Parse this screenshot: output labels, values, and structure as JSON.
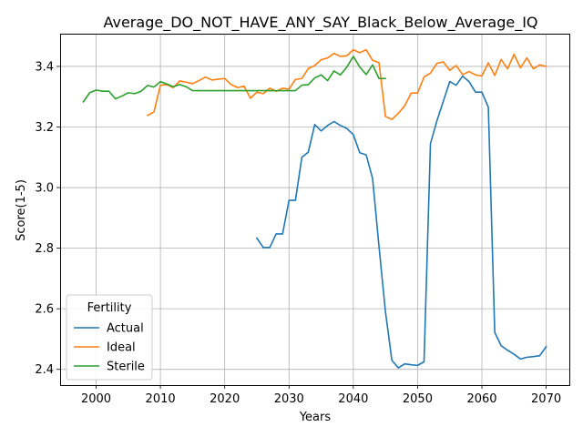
{
  "chart_data": {
    "type": "line",
    "title": "Average_DO_NOT_HAVE_ANY_SAY_Black_Below_Average_IQ",
    "xlabel": "Years",
    "ylabel": "Score(1-5)",
    "xlim": [
      1994.4,
      2073.6
    ],
    "ylim": [
      2.348,
      3.508
    ],
    "xticks": [
      2000,
      2010,
      2020,
      2030,
      2040,
      2050,
      2060,
      2070
    ],
    "yticks": [
      2.4,
      2.6,
      2.8,
      3.0,
      3.2,
      3.4
    ],
    "grid": true,
    "legend": {
      "title": "Fertility",
      "position": "lower-left"
    },
    "series": [
      {
        "name": "Actual",
        "color": "#1f77b4",
        "points": [
          [
            2025,
            2.833
          ],
          [
            2026,
            2.802
          ],
          [
            2027,
            2.802
          ],
          [
            2028,
            2.847
          ],
          [
            2029,
            2.847
          ],
          [
            2030,
            2.958
          ],
          [
            2031,
            2.958
          ],
          [
            2032,
            3.1
          ],
          [
            2033,
            3.117
          ],
          [
            2034,
            3.208
          ],
          [
            2035,
            3.187
          ],
          [
            2036,
            3.205
          ],
          [
            2037,
            3.218
          ],
          [
            2038,
            3.205
          ],
          [
            2039,
            3.195
          ],
          [
            2040,
            3.175
          ],
          [
            2041,
            3.115
          ],
          [
            2042,
            3.108
          ],
          [
            2043,
            3.03
          ],
          [
            2044,
            2.805
          ],
          [
            2045,
            2.59
          ],
          [
            2046,
            2.43
          ],
          [
            2047,
            2.405
          ],
          [
            2048,
            2.418
          ],
          [
            2049,
            2.415
          ],
          [
            2050,
            2.413
          ],
          [
            2051,
            2.425
          ],
          [
            2052,
            3.145
          ],
          [
            2053,
            3.22
          ],
          [
            2054,
            3.285
          ],
          [
            2055,
            3.35
          ],
          [
            2056,
            3.338
          ],
          [
            2057,
            3.368
          ],
          [
            2058,
            3.35
          ],
          [
            2059,
            3.315
          ],
          [
            2060,
            3.315
          ],
          [
            2061,
            3.265
          ],
          [
            2062,
            2.522
          ],
          [
            2063,
            2.478
          ],
          [
            2064,
            2.463
          ],
          [
            2065,
            2.45
          ],
          [
            2066,
            2.434
          ],
          [
            2067,
            2.44
          ],
          [
            2068,
            2.442
          ],
          [
            2069,
            2.445
          ],
          [
            2070,
            2.475
          ]
        ]
      },
      {
        "name": "Ideal",
        "color": "#ff7f0e",
        "points": [
          [
            2008,
            3.238
          ],
          [
            2009,
            3.25
          ],
          [
            2010,
            3.338
          ],
          [
            2011,
            3.34
          ],
          [
            2012,
            3.33
          ],
          [
            2013,
            3.352
          ],
          [
            2014,
            3.348
          ],
          [
            2015,
            3.343
          ],
          [
            2016,
            3.353
          ],
          [
            2017,
            3.365
          ],
          [
            2018,
            3.355
          ],
          [
            2019,
            3.358
          ],
          [
            2020,
            3.36
          ],
          [
            2021,
            3.34
          ],
          [
            2022,
            3.33
          ],
          [
            2023,
            3.335
          ],
          [
            2024,
            3.295
          ],
          [
            2025,
            3.315
          ],
          [
            2026,
            3.31
          ],
          [
            2027,
            3.328
          ],
          [
            2028,
            3.318
          ],
          [
            2029,
            3.328
          ],
          [
            2030,
            3.325
          ],
          [
            2031,
            3.357
          ],
          [
            2032,
            3.36
          ],
          [
            2033,
            3.393
          ],
          [
            2034,
            3.403
          ],
          [
            2035,
            3.422
          ],
          [
            2036,
            3.428
          ],
          [
            2037,
            3.443
          ],
          [
            2038,
            3.433
          ],
          [
            2039,
            3.435
          ],
          [
            2040,
            3.455
          ],
          [
            2041,
            3.445
          ],
          [
            2042,
            3.455
          ],
          [
            2043,
            3.42
          ],
          [
            2044,
            3.412
          ],
          [
            2045,
            3.235
          ],
          [
            2046,
            3.225
          ],
          [
            2047,
            3.245
          ],
          [
            2048,
            3.27
          ],
          [
            2049,
            3.312
          ],
          [
            2050,
            3.312
          ],
          [
            2051,
            3.365
          ],
          [
            2052,
            3.378
          ],
          [
            2053,
            3.41
          ],
          [
            2054,
            3.415
          ],
          [
            2055,
            3.387
          ],
          [
            2056,
            3.403
          ],
          [
            2057,
            3.373
          ],
          [
            2058,
            3.383
          ],
          [
            2059,
            3.372
          ],
          [
            2060,
            3.368
          ],
          [
            2061,
            3.412
          ],
          [
            2062,
            3.37
          ],
          [
            2063,
            3.423
          ],
          [
            2064,
            3.392
          ],
          [
            2065,
            3.44
          ],
          [
            2066,
            3.395
          ],
          [
            2067,
            3.428
          ],
          [
            2068,
            3.392
          ],
          [
            2069,
            3.405
          ],
          [
            2070,
            3.4
          ]
        ]
      },
      {
        "name": "Sterile",
        "color": "#2ca02c",
        "points": [
          [
            1998,
            3.283
          ],
          [
            1999,
            3.313
          ],
          [
            2000,
            3.322
          ],
          [
            2001,
            3.318
          ],
          [
            2002,
            3.318
          ],
          [
            2003,
            3.293
          ],
          [
            2004,
            3.302
          ],
          [
            2005,
            3.313
          ],
          [
            2006,
            3.31
          ],
          [
            2007,
            3.318
          ],
          [
            2008,
            3.337
          ],
          [
            2009,
            3.332
          ],
          [
            2010,
            3.35
          ],
          [
            2011,
            3.342
          ],
          [
            2012,
            3.333
          ],
          [
            2013,
            3.34
          ],
          [
            2014,
            3.333
          ],
          [
            2015,
            3.32
          ],
          [
            2016,
            3.32
          ],
          [
            2017,
            3.32
          ],
          [
            2018,
            3.32
          ],
          [
            2019,
            3.32
          ],
          [
            2020,
            3.32
          ],
          [
            2021,
            3.32
          ],
          [
            2022,
            3.32
          ],
          [
            2023,
            3.32
          ],
          [
            2024,
            3.32
          ],
          [
            2025,
            3.32
          ],
          [
            2026,
            3.32
          ],
          [
            2027,
            3.32
          ],
          [
            2028,
            3.32
          ],
          [
            2029,
            3.32
          ],
          [
            2030,
            3.32
          ],
          [
            2031,
            3.32
          ],
          [
            2032,
            3.338
          ],
          [
            2033,
            3.34
          ],
          [
            2034,
            3.362
          ],
          [
            2035,
            3.372
          ],
          [
            2036,
            3.353
          ],
          [
            2037,
            3.385
          ],
          [
            2038,
            3.372
          ],
          [
            2039,
            3.398
          ],
          [
            2040,
            3.433
          ],
          [
            2041,
            3.398
          ],
          [
            2042,
            3.373
          ],
          [
            2043,
            3.405
          ],
          [
            2044,
            3.36
          ],
          [
            2045,
            3.36
          ]
        ]
      }
    ]
  }
}
